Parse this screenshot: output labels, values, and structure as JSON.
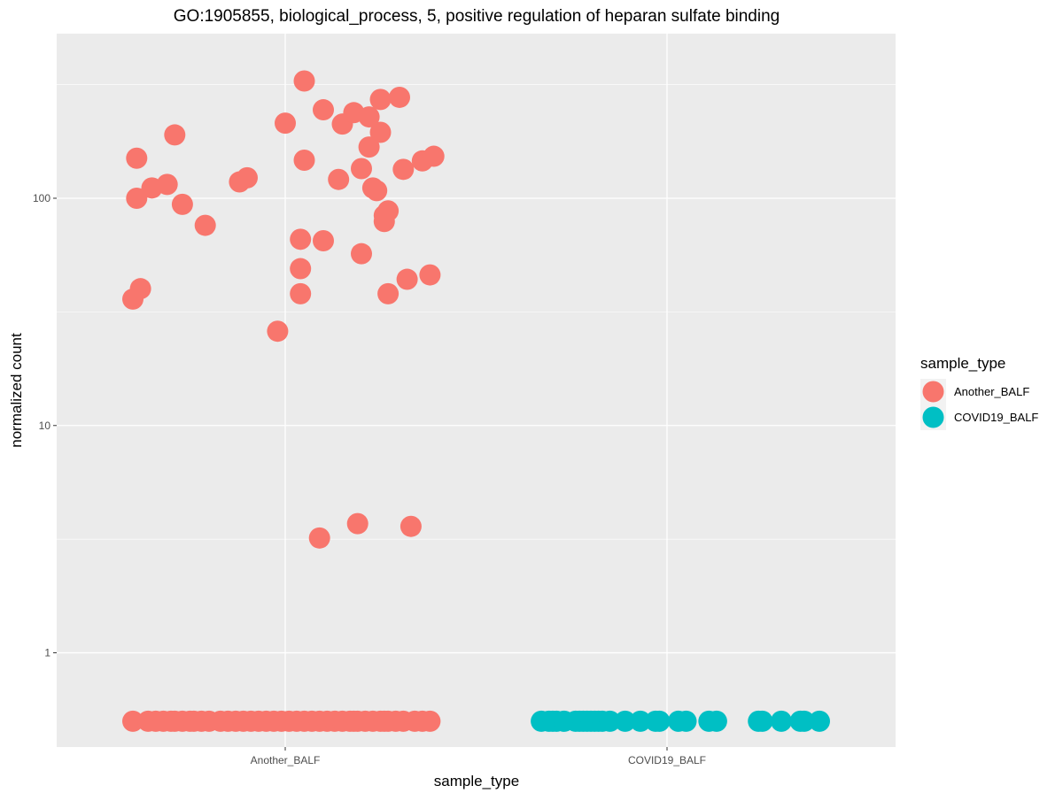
{
  "chart_data": {
    "type": "scatter",
    "title": "GO:1905855, biological_process, 5, positive regulation of heparan sulfate binding",
    "xlabel": "sample_type",
    "ylabel": "normalized count",
    "categories": [
      "Another_BALF",
      "COVID19_BALF"
    ],
    "y_scale": "log10",
    "ylim": [
      0.385,
      530
    ],
    "y_ticks": [
      1,
      10,
      100
    ],
    "y_tick_labels": [
      "1",
      "10",
      "100"
    ],
    "grid": true,
    "legend": {
      "title": "sample_type",
      "position": "right",
      "entries": [
        {
          "label": "Another_BALF",
          "color": "#F8766D"
        },
        {
          "label": "COVID19_BALF",
          "color": "#00BFC4"
        }
      ]
    },
    "series": [
      {
        "name": "Another_BALF",
        "color": "#F8766D",
        "points": [
          [
            -0.4,
            36
          ],
          [
            -0.39,
            100
          ],
          [
            -0.39,
            150
          ],
          [
            -0.38,
            40
          ],
          [
            -0.35,
            111
          ],
          [
            -0.31,
            115
          ],
          [
            -0.29,
            190
          ],
          [
            -0.27,
            94
          ],
          [
            -0.21,
            76
          ],
          [
            -0.12,
            118
          ],
          [
            -0.1,
            123
          ],
          [
            -0.02,
            26
          ],
          [
            0.0,
            214
          ],
          [
            0.04,
            38
          ],
          [
            0.04,
            49
          ],
          [
            0.04,
            66
          ],
          [
            0.05,
            328
          ],
          [
            0.05,
            147
          ],
          [
            0.09,
            3.2
          ],
          [
            0.1,
            65
          ],
          [
            0.1,
            245
          ],
          [
            0.14,
            121
          ],
          [
            0.15,
            212
          ],
          [
            0.18,
            238
          ],
          [
            0.19,
            3.7
          ],
          [
            0.2,
            57
          ],
          [
            0.2,
            135
          ],
          [
            0.22,
            228
          ],
          [
            0.22,
            168
          ],
          [
            0.23,
            111
          ],
          [
            0.24,
            108
          ],
          [
            0.25,
            195
          ],
          [
            0.25,
            272
          ],
          [
            0.26,
            84
          ],
          [
            0.26,
            79
          ],
          [
            0.27,
            88
          ],
          [
            0.27,
            38
          ],
          [
            0.3,
            278
          ],
          [
            0.31,
            134
          ],
          [
            0.32,
            44
          ],
          [
            0.33,
            3.6
          ],
          [
            0.36,
            146
          ],
          [
            0.38,
            46
          ],
          [
            0.39,
            153
          ]
        ],
        "baseline_value": 0.5,
        "baseline_x": [
          -0.4,
          -0.36,
          -0.34,
          -0.32,
          -0.3,
          -0.29,
          -0.27,
          -0.25,
          -0.24,
          -0.22,
          -0.2,
          -0.17,
          -0.15,
          -0.13,
          -0.11,
          -0.09,
          -0.07,
          -0.05,
          -0.03,
          -0.01,
          0.01,
          0.03,
          0.05,
          0.07,
          0.09,
          0.11,
          0.13,
          0.15,
          0.17,
          0.18,
          0.19,
          0.21,
          0.23,
          0.25,
          0.26,
          0.27,
          0.29,
          0.31,
          0.34,
          0.36,
          0.38
        ]
      },
      {
        "name": "COVID19_BALF",
        "color": "#00BFC4",
        "baseline_value": 0.5,
        "baseline_x": [
          -0.33,
          -0.31,
          -0.3,
          -0.29,
          -0.27,
          -0.24,
          -0.23,
          -0.22,
          -0.21,
          -0.2,
          -0.19,
          -0.18,
          -0.17,
          -0.15,
          -0.11,
          -0.07,
          -0.03,
          -0.02,
          0.03,
          0.05,
          0.11,
          0.13,
          0.24,
          0.25,
          0.3,
          0.35,
          0.36,
          0.4
        ]
      }
    ]
  }
}
